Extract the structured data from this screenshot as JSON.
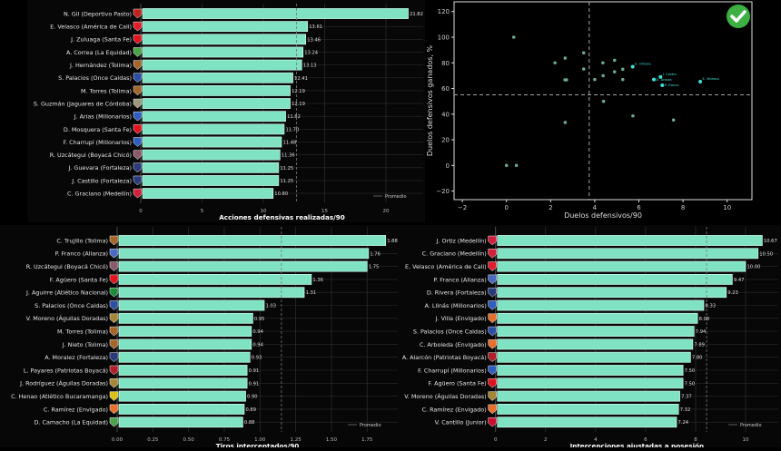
{
  "colors": {
    "bar": "#7fe3c3",
    "bar_edge": "#d9fff1",
    "point": "#6aa88f",
    "highlight": "#3fe0d6",
    "grid": "#2b2b2b",
    "text": "#e6e6e6",
    "check_badge": "#3cb043"
  },
  "crest_colors": {
    "Deportivo Pasto": "#c0201a",
    "América de Cali": "#e21d2b",
    "Santa Fe": "#e0131f",
    "La Equidad": "#4aa34a",
    "Tolima": "#a5662b",
    "Once Caldas": "#2b4fa3",
    "Jaguares de Córdoba": "#9a9a7a",
    "Millonarios": "#2e5fbf",
    "Boyacá Chicó": "#8a5a6a",
    "Fortaleza": "#2a3a7a",
    "Medellín": "#d21f3a",
    "Alianza": "#4a6ac0",
    "Atlético Nacional": "#1f8a3a",
    "Águilas Doradas": "#a6873a",
    "Patriotas Boyacá": "#b01e2a",
    "Atlético Bucaramanga": "#d8c21a",
    "Envigado": "#e8702a",
    "Junior": "#c8102e"
  },
  "chart_data": [
    {
      "type": "bar",
      "orientation": "horizontal",
      "xlabel": "Acciones defensivas realizadas/90",
      "xticks": [
        "0",
        "5",
        "10",
        "15",
        "20"
      ],
      "xlim": [
        0,
        23
      ],
      "average": 12.7,
      "legend": {
        "label": "Promedio",
        "placement": "lower-right"
      },
      "grid": true,
      "categories": [
        "N. Gil (Deportivo Pasto)",
        "E. Velasco (América de Cali)",
        "J. Zuluaga (Santa Fe)",
        "A. Correa (La Equidad)",
        "J. Hernández (Tolima)",
        "S. Palacios (Once Caldas)",
        "M. Torres (Tolima)",
        "S. Guzmán (Jaguares de Córdoba)",
        "J. Arias (Millonarios)",
        "D. Mosquera (Santa Fe)",
        "F. Charrupí (Millonarios)",
        "R. Uzcátegui (Boyacá Chicó)",
        "J. Guevara (Fortaleza)",
        "J. Castillo (Fortaleza)",
        "C. Graciano (Medellín)"
      ],
      "teams": [
        "Deportivo Pasto",
        "América de Cali",
        "Santa Fe",
        "La Equidad",
        "Tolima",
        "Once Caldas",
        "Tolima",
        "Jaguares de Córdoba",
        "Millonarios",
        "Santa Fe",
        "Millonarios",
        "Boyacá Chicó",
        "Fortaleza",
        "Fortaleza",
        "Medellín"
      ],
      "values": [
        21.82,
        13.61,
        13.46,
        13.24,
        13.13,
        12.41,
        12.19,
        12.19,
        11.82,
        11.7,
        11.48,
        11.36,
        11.25,
        11.25,
        10.8
      ],
      "value_labels": [
        "21.82",
        "13.61",
        "13.46",
        "13.24",
        "13.13",
        "12.41",
        "12.19",
        "12.19",
        "11.82",
        "11.70",
        "11.48",
        "11.36",
        "11.25",
        "11.25",
        "10.80"
      ]
    },
    {
      "type": "scatter",
      "xlabel": "Duelos defensivos/90",
      "ylabel": "Duelos defensivos ganados, %",
      "xticks": [
        "−2",
        "0",
        "2",
        "4",
        "6",
        "8",
        "10"
      ],
      "yticks": [
        "−20",
        "0",
        "20",
        "40",
        "60",
        "80",
        "100",
        "120"
      ],
      "xlim": [
        -2.4,
        11.1
      ],
      "ylim": [
        -27,
        127
      ],
      "mean_x": 3.75,
      "mean_y": 55,
      "badge": "check-icon",
      "points": [
        {
          "x": 0.33,
          "y": 100
        },
        {
          "x": 2.2,
          "y": 80
        },
        {
          "x": 2.66,
          "y": 83.7
        },
        {
          "x": 2.65,
          "y": 66.7
        },
        {
          "x": 2.72,
          "y": 66.7
        },
        {
          "x": 3.5,
          "y": 87.8
        },
        {
          "x": 3.5,
          "y": 75.2
        },
        {
          "x": 4.37,
          "y": 80
        },
        {
          "x": 4.9,
          "y": 82
        },
        {
          "x": 4.38,
          "y": 70
        },
        {
          "x": 4.9,
          "y": 73
        },
        {
          "x": 5.27,
          "y": 75
        },
        {
          "x": 5.27,
          "y": 67
        },
        {
          "x": 4.0,
          "y": 67
        },
        {
          "x": 4.4,
          "y": 50
        },
        {
          "x": 5.73,
          "y": 38.6
        },
        {
          "x": 7.57,
          "y": 35.4
        },
        {
          "x": 2.66,
          "y": 33.5
        },
        {
          "x": 0,
          "y": 0
        },
        {
          "x": 0.45,
          "y": 0
        }
      ],
      "highlighted": [
        {
          "label": "E. Olivera",
          "x": 5.72,
          "y": 77
        },
        {
          "label": "J. Castro",
          "x": 6.98,
          "y": 69
        },
        {
          "label": "D. Acosta",
          "x": 6.68,
          "y": 67
        },
        {
          "label": "P. Franco",
          "x": 7.06,
          "y": 62.5
        },
        {
          "label": "E. Velasco",
          "x": 8.78,
          "y": 65.3
        }
      ]
    },
    {
      "type": "bar",
      "orientation": "horizontal",
      "xlabel": "Tiros interceptados/90",
      "xticks": [
        "0.00",
        "0.25",
        "0.50",
        "0.75",
        "1.00",
        "1.25",
        "1.50",
        "1.75"
      ],
      "xlim": [
        0,
        1.97
      ],
      "average": 1.15,
      "legend": {
        "label": "Promedio",
        "placement": "lower-right"
      },
      "grid": true,
      "categories": [
        "C. Trujillo (Tolima)",
        "P. Franco (Alianza)",
        "R. Uzcátegui (Boyacá Chicó)",
        "F. Agüero (Santa Fe)",
        "J. Aguirre (Atlético Nacional)",
        "S. Palacios (Once Caldas)",
        "V. Moreno (Águilas Doradas)",
        "M. Torres (Tolima)",
        "J. Nieto (Tolima)",
        "A. Moralez (Fortaleza)",
        "L. Payares (Patriotas Boyacá)",
        "J. Rodríguez (Águilas Doradas)",
        "C. Henao (Atlético Bucaramanga)",
        "C. Ramírez (Envigado)",
        "D. Camacho (La Equidad)"
      ],
      "teams": [
        "Tolima",
        "Alianza",
        "Boyacá Chicó",
        "Santa Fe",
        "Atlético Nacional",
        "Once Caldas",
        "Águilas Doradas",
        "Tolima",
        "Tolima",
        "Fortaleza",
        "Patriotas Boyacá",
        "Águilas Doradas",
        "Atlético Bucaramanga",
        "Envigado",
        "La Equidad"
      ],
      "values": [
        1.88,
        1.76,
        1.75,
        1.36,
        1.31,
        1.03,
        0.95,
        0.94,
        0.94,
        0.93,
        0.91,
        0.91,
        0.9,
        0.89,
        0.88
      ],
      "value_labels": [
        "1.88",
        "1.76",
        "1.75",
        "1.36",
        "1.31",
        "1.03",
        "0.95",
        "0.94",
        "0.94",
        "0.93",
        "0.91",
        "0.91",
        "0.90",
        "0.89",
        "0.88"
      ]
    },
    {
      "type": "bar",
      "orientation": "horizontal",
      "xlabel": "Intercepciones ajustadas a posesión",
      "xticks": [
        "0",
        "2",
        "4",
        "6",
        "8",
        "10"
      ],
      "xlim": [
        0,
        11.2
      ],
      "average": 8.44,
      "legend": {
        "label": "Promedio",
        "placement": "lower-right"
      },
      "grid": true,
      "categories": [
        "J. Ortiz (Medellín)",
        "C. Graciano (Medellín)",
        "E. Velasco (América de Cali)",
        "P. Franco (Alianza)",
        "D. Rivera (Fortaleza)",
        "A. Llinás (Millonarios)",
        "J. Villa (Envigado)",
        "S. Palacios (Once Caldas)",
        "C. Arboleda (Envigado)",
        "A. Alarcón (Patriotas Boyacá)",
        "F. Charrupí (Millonarios)",
        "F. Agüero (Santa Fe)",
        "V. Moreno (Águilas Doradas)",
        "C. Ramírez (Envigado)",
        "V. Cantillo (Junior)"
      ],
      "teams": [
        "Medellín",
        "Medellín",
        "América de Cali",
        "Alianza",
        "Fortaleza",
        "Millonarios",
        "Envigado",
        "Once Caldas",
        "Envigado",
        "Patriotas Boyacá",
        "Millonarios",
        "Santa Fe",
        "Águilas Doradas",
        "Envigado",
        "Junior"
      ],
      "values": [
        10.67,
        10.5,
        10.0,
        9.47,
        9.23,
        8.33,
        8.08,
        7.94,
        7.89,
        7.8,
        7.5,
        7.5,
        7.37,
        7.32,
        7.24
      ],
      "value_labels": [
        "10.67",
        "10.50",
        "10.00",
        "9.47",
        "9.23",
        "8.33",
        "8.08",
        "7.94",
        "7.89",
        "7.80",
        "7.50",
        "7.50",
        "7.37",
        "7.32",
        "7.24"
      ]
    }
  ]
}
